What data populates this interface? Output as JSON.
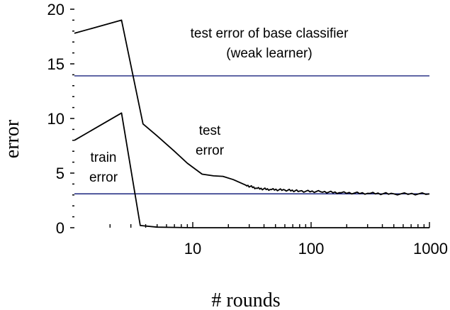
{
  "chart_data": {
    "type": "line",
    "xlabel": "# rounds",
    "ylabel": "error",
    "xscale": "log",
    "xlim": [
      1,
      1000
    ],
    "ylim": [
      0,
      20
    ],
    "grid": false,
    "x_ticks": [
      {
        "value": 10,
        "label": "10"
      },
      {
        "value": 100,
        "label": "100"
      },
      {
        "value": 1000,
        "label": "1000"
      }
    ],
    "y_ticks": [
      {
        "value": 0,
        "label": "0"
      },
      {
        "value": 5,
        "label": "5"
      },
      {
        "value": 10,
        "label": "10"
      },
      {
        "value": 15,
        "label": "15"
      },
      {
        "value": 20,
        "label": "20"
      }
    ],
    "series": [
      {
        "key": "test",
        "color": "#000000",
        "points": [
          [
            1,
            17.8
          ],
          [
            2.5,
            19.0
          ],
          [
            3.8,
            9.5
          ],
          [
            5,
            8.4
          ],
          [
            7,
            7.0
          ],
          [
            9,
            5.9
          ],
          [
            12,
            4.9
          ],
          [
            15,
            4.75
          ],
          [
            18,
            4.7
          ],
          [
            22,
            4.4
          ],
          [
            28,
            3.9
          ],
          [
            35,
            3.6
          ],
          [
            45,
            3.5
          ],
          [
            60,
            3.45
          ],
          [
            80,
            3.35
          ],
          [
            120,
            3.3
          ],
          [
            180,
            3.2
          ],
          [
            300,
            3.15
          ],
          [
            500,
            3.1
          ],
          [
            1000,
            3.1
          ]
        ]
      },
      {
        "key": "train",
        "color": "#000000",
        "points": [
          [
            1,
            8.0
          ],
          [
            2.5,
            10.5
          ],
          [
            3.6,
            0.2
          ],
          [
            5,
            0.05
          ],
          [
            10,
            0.0
          ],
          [
            1000,
            0.0
          ]
        ]
      }
    ],
    "reference_lines": [
      {
        "key": "base-test-error",
        "y": 13.9,
        "color": "#1a237e"
      },
      {
        "key": "final-test-error",
        "y": 3.1,
        "color": "#1a237e"
      }
    ],
    "annotations": {
      "base_line1": "test error of base classifier",
      "base_line2": "(weak learner)",
      "test_line1": "test",
      "test_line2": "error",
      "train_line1": "train",
      "train_line2": "error"
    }
  }
}
